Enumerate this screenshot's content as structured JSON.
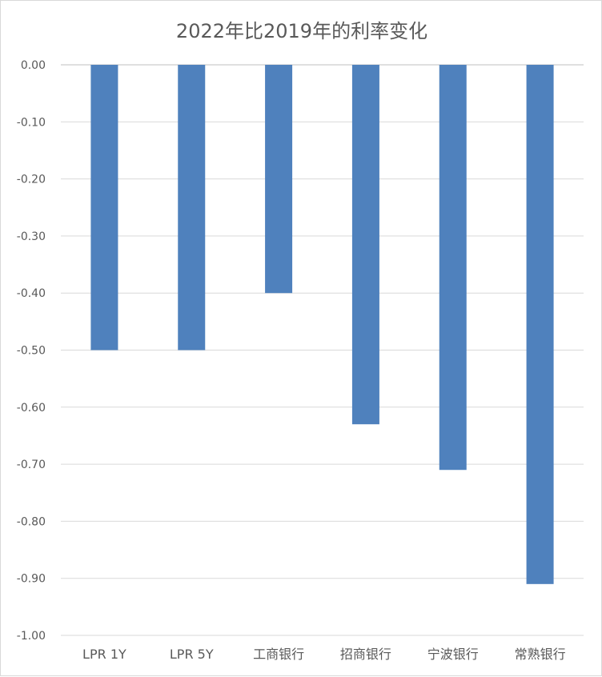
{
  "chart_data": {
    "type": "bar",
    "title": "2022年比2019年的利率变化",
    "categories": [
      "LPR 1Y",
      "LPR 5Y",
      "工商银行",
      "招商银行",
      "宁波银行",
      "常熟银行"
    ],
    "series": [
      {
        "values": [
          -0.5,
          -0.5,
          -0.4,
          -0.63,
          -0.71,
          -0.91
        ]
      }
    ],
    "yticks": [
      "0.00",
      "-0.10",
      "-0.20",
      "-0.30",
      "-0.40",
      "-0.50",
      "-0.60",
      "-0.70",
      "-0.80",
      "-0.90",
      "-1.00"
    ],
    "ylim": [
      -1.0,
      0.0
    ],
    "grid": true,
    "legend": "none",
    "bar_color": "#4f81bd",
    "grid_color": "#d9d9d9",
    "text_color": "#595959"
  }
}
